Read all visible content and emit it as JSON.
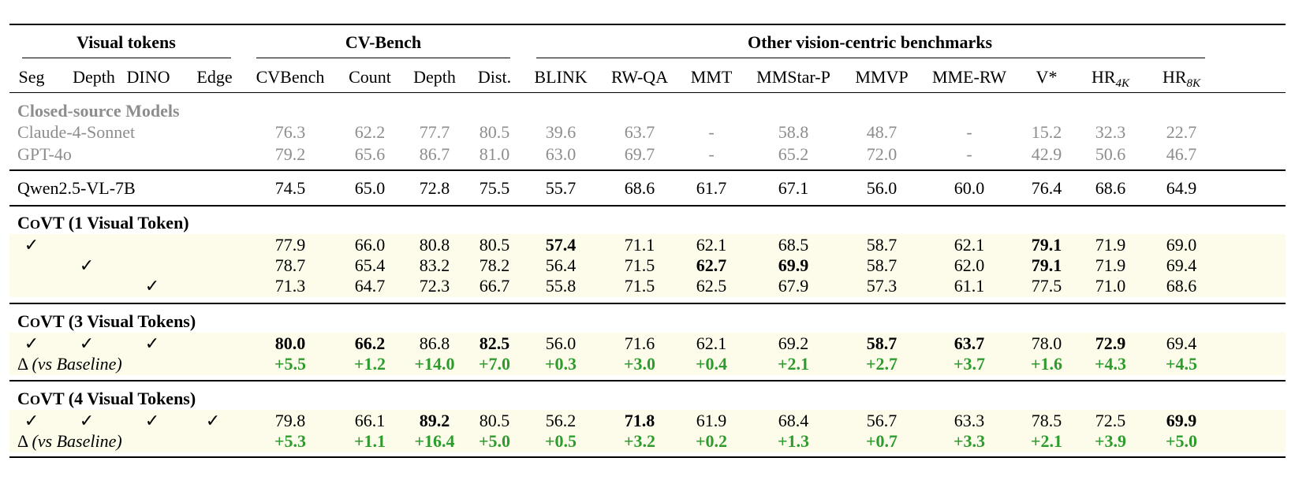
{
  "header": {
    "groups": [
      "Visual tokens",
      "CV-Bench",
      "Other vision-centric benchmarks"
    ],
    "columns": [
      "Seg",
      "Depth",
      "DINO",
      "Edge",
      "CVBench",
      "Count",
      "Depth",
      "Dist.",
      "BLINK",
      "RW-QA",
      "MMT",
      "MMStar-P",
      "MMVP",
      "MME-RW",
      "V*",
      "HR",
      "HR"
    ],
    "hr_subscripts": [
      "4K",
      "8K"
    ]
  },
  "check_mark": "✓",
  "closed": {
    "title": "Closed-source Models",
    "rows": [
      {
        "name": "Claude-4-Sonnet",
        "values": [
          "76.3",
          "62.2",
          "77.7",
          "80.5",
          "39.6",
          "63.7",
          "-",
          "58.8",
          "48.7",
          "-",
          "15.2",
          "32.3",
          "22.7"
        ]
      },
      {
        "name": "GPT-4o",
        "values": [
          "79.2",
          "65.6",
          "86.7",
          "81.0",
          "63.0",
          "69.7",
          "-",
          "65.2",
          "72.0",
          "-",
          "42.9",
          "50.6",
          "46.7"
        ]
      }
    ]
  },
  "baseline": {
    "name": "Qwen2.5-VL-7B",
    "values": [
      "74.5",
      "65.0",
      "72.8",
      "75.5",
      "55.7",
      "68.6",
      "61.7",
      "67.1",
      "56.0",
      "60.0",
      "76.4",
      "68.6",
      "64.9"
    ]
  },
  "sections": [
    {
      "title_c": "C",
      "title_o": "O",
      "title_rest": "VT",
      "title_suffix": "(1 Visual Token)",
      "rows": [
        {
          "checks": [
            true,
            false,
            false,
            false
          ],
          "values": [
            "77.9",
            "66.0",
            "80.8",
            "80.5",
            "57.4",
            "71.1",
            "62.1",
            "68.5",
            "58.7",
            "62.1",
            "79.1",
            "71.9",
            "69.0"
          ],
          "bold": [
            4,
            10
          ]
        },
        {
          "checks": [
            false,
            true,
            false,
            false
          ],
          "values": [
            "78.7",
            "65.4",
            "83.2",
            "78.2",
            "56.4",
            "71.5",
            "62.7",
            "69.9",
            "58.7",
            "62.0",
            "79.1",
            "71.9",
            "69.4"
          ],
          "bold": [
            6,
            7,
            10
          ]
        },
        {
          "checks": [
            false,
            false,
            true,
            false
          ],
          "values": [
            "71.3",
            "64.7",
            "72.3",
            "66.7",
            "55.8",
            "71.5",
            "62.5",
            "67.9",
            "57.3",
            "61.1",
            "77.5",
            "71.0",
            "68.6"
          ],
          "bold": []
        }
      ]
    },
    {
      "title_c": "C",
      "title_o": "O",
      "title_rest": "VT",
      "title_suffix": "(3 Visual Tokens)",
      "rows": [
        {
          "checks": [
            true,
            true,
            true,
            false
          ],
          "values": [
            "80.0",
            "66.2",
            "86.8",
            "82.5",
            "56.0",
            "71.6",
            "62.1",
            "69.2",
            "58.7",
            "63.7",
            "78.0",
            "72.9",
            "69.4"
          ],
          "bold": [
            0,
            1,
            3,
            8,
            9,
            11
          ]
        }
      ],
      "delta": {
        "symbol": "Δ",
        "label": "(vs Baseline)",
        "values": [
          "+5.5",
          "+1.2",
          "+14.0",
          "+7.0",
          "+0.3",
          "+3.0",
          "+0.4",
          "+2.1",
          "+2.7",
          "+3.7",
          "+1.6",
          "+4.3",
          "+4.5"
        ]
      }
    },
    {
      "title_c": "C",
      "title_o": "O",
      "title_rest": "VT",
      "title_suffix": "(4 Visual Tokens)",
      "rows": [
        {
          "checks": [
            true,
            true,
            true,
            true
          ],
          "values": [
            "79.8",
            "66.1",
            "89.2",
            "80.5",
            "56.2",
            "71.8",
            "61.9",
            "68.4",
            "56.7",
            "63.3",
            "78.5",
            "72.5",
            "69.9"
          ],
          "bold": [
            2,
            5,
            12
          ]
        }
      ],
      "delta": {
        "symbol": "Δ",
        "label": "(vs Baseline)",
        "values": [
          "+5.3",
          "+1.1",
          "+16.4",
          "+5.0",
          "+0.5",
          "+3.2",
          "+0.2",
          "+1.3",
          "+0.7",
          "+3.3",
          "+2.1",
          "+3.9",
          "+5.0"
        ]
      }
    }
  ],
  "colors": {
    "green": "#2e9b2e",
    "gray": "#8d8d8d",
    "band": "#fdfcea"
  }
}
